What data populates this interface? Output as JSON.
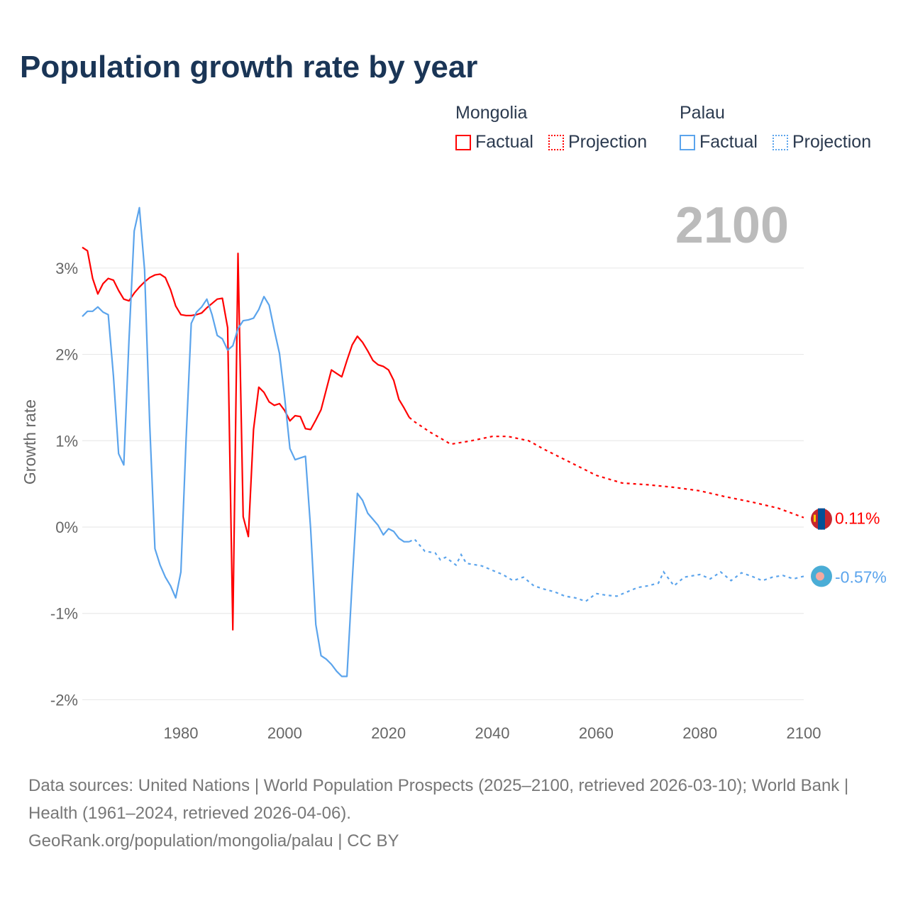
{
  "title": "Population growth rate by year",
  "legend": [
    {
      "name": "Mongolia",
      "color": "#ff0000",
      "factual": "Factual",
      "projection": "Projection"
    },
    {
      "name": "Palau",
      "color": "#5ba4ec",
      "factual": "Factual",
      "projection": "Projection"
    }
  ],
  "year_display": "2100",
  "footer": {
    "sources": "Data sources: United Nations | World Population Prospects (2025–2100, retrieved 2026-03-10); World Bank | Health (1961–2024, retrieved 2026-04-06).",
    "credit": "GeoRank.org/population/mongolia/palau | CC BY"
  },
  "chart_data": {
    "type": "line",
    "title": "Population growth rate by year",
    "xlabel": "",
    "ylabel": "Growth rate",
    "xlim": [
      1961,
      2100
    ],
    "ylim": [
      -2.2,
      3.8
    ],
    "xticks": [
      1980,
      2000,
      2020,
      2040,
      2060,
      2080,
      2100
    ],
    "yticks": [
      -2,
      -1,
      0,
      1,
      2,
      3
    ],
    "ytick_labels": [
      "-2%",
      "-1%",
      "0%",
      "1%",
      "2%",
      "3%"
    ],
    "grid": true,
    "legend_position": "top-right",
    "series": [
      {
        "name": "Mongolia",
        "color": "#ff0000",
        "end_label": "0.11%",
        "factual": {
          "x": [
            1961,
            1962,
            1963,
            1964,
            1965,
            1966,
            1967,
            1968,
            1969,
            1970,
            1971,
            1972,
            1973,
            1974,
            1975,
            1976,
            1977,
            1978,
            1979,
            1980,
            1981,
            1982,
            1983,
            1984,
            1985,
            1986,
            1987,
            1988,
            1989,
            1990,
            1991,
            1992,
            1993,
            1994,
            1995,
            1996,
            1997,
            1998,
            1999,
            2000,
            2001,
            2002,
            2003,
            2004,
            2005,
            2006,
            2007,
            2008,
            2009,
            2010,
            2011,
            2012,
            2013,
            2014,
            2015,
            2016,
            2017,
            2018,
            2019,
            2020,
            2021,
            2022,
            2023,
            2024
          ],
          "y": [
            3.24,
            3.2,
            2.88,
            2.7,
            2.82,
            2.88,
            2.86,
            2.74,
            2.64,
            2.62,
            2.71,
            2.78,
            2.84,
            2.89,
            2.92,
            2.93,
            2.89,
            2.75,
            2.56,
            2.46,
            2.45,
            2.45,
            2.46,
            2.48,
            2.54,
            2.59,
            2.64,
            2.65,
            2.31,
            -1.19,
            3.17,
            0.12,
            -0.11,
            1.13,
            1.62,
            1.56,
            1.45,
            1.41,
            1.43,
            1.35,
            1.23,
            1.29,
            1.28,
            1.14,
            1.13,
            1.24,
            1.36,
            1.59,
            1.82,
            1.78,
            1.74,
            1.93,
            2.11,
            2.21,
            2.14,
            2.04,
            1.93,
            1.88,
            1.86,
            1.82,
            1.7,
            1.48,
            1.38,
            1.27
          ]
        },
        "projection": {
          "x": [
            2024,
            2025,
            2028,
            2032,
            2036,
            2040,
            2043,
            2047,
            2050,
            2055,
            2060,
            2065,
            2070,
            2075,
            2080,
            2085,
            2090,
            2095,
            2100
          ],
          "y": [
            1.27,
            1.22,
            1.1,
            0.96,
            1.0,
            1.05,
            1.05,
            1.0,
            0.9,
            0.75,
            0.6,
            0.51,
            0.49,
            0.46,
            0.42,
            0.35,
            0.29,
            0.22,
            0.11
          ]
        }
      },
      {
        "name": "Palau",
        "color": "#5ba4ec",
        "end_label": "-0.57%",
        "factual": {
          "x": [
            1961,
            1962,
            1963,
            1964,
            1965,
            1966,
            1967,
            1968,
            1969,
            1970,
            1971,
            1972,
            1973,
            1974,
            1975,
            1976,
            1977,
            1978,
            1979,
            1980,
            1981,
            1982,
            1983,
            1984,
            1985,
            1986,
            1987,
            1988,
            1989,
            1990,
            1991,
            1992,
            1993,
            1994,
            1995,
            1996,
            1997,
            1998,
            1999,
            2000,
            2001,
            2002,
            2003,
            2004,
            2005,
            2006,
            2007,
            2008,
            2009,
            2010,
            2011,
            2012,
            2013,
            2014,
            2015,
            2016,
            2017,
            2018,
            2019,
            2020,
            2021,
            2022,
            2023,
            2024
          ],
          "y": [
            2.44,
            2.5,
            2.5,
            2.55,
            2.49,
            2.46,
            1.75,
            0.85,
            0.72,
            2.16,
            3.43,
            3.7,
            2.98,
            1.18,
            -0.25,
            -0.44,
            -0.58,
            -0.68,
            -0.82,
            -0.52,
            1.01,
            2.36,
            2.49,
            2.55,
            2.64,
            2.46,
            2.22,
            2.18,
            2.05,
            2.1,
            2.3,
            2.39,
            2.4,
            2.42,
            2.52,
            2.67,
            2.57,
            2.28,
            2.01,
            1.5,
            0.91,
            0.78,
            0.8,
            0.82,
            -0.02,
            -1.13,
            -1.49,
            -1.53,
            -1.59,
            -1.67,
            -1.73,
            -1.73,
            -0.63,
            0.39,
            0.31,
            0.16,
            0.09,
            0.02,
            -0.09,
            -0.02,
            -0.05,
            -0.13,
            -0.17,
            -0.17
          ]
        },
        "projection": {
          "x": [
            2024,
            2025,
            2027,
            2029,
            2030,
            2031,
            2033,
            2034,
            2035,
            2038,
            2040,
            2042,
            2044,
            2046,
            2048,
            2050,
            2052,
            2054,
            2056,
            2058,
            2060,
            2062,
            2064,
            2066,
            2068,
            2070,
            2072,
            2073,
            2075,
            2077,
            2080,
            2082,
            2084,
            2086,
            2088,
            2090,
            2092,
            2094,
            2096,
            2098,
            2100
          ],
          "y": [
            -0.17,
            -0.14,
            -0.28,
            -0.3,
            -0.38,
            -0.35,
            -0.44,
            -0.32,
            -0.42,
            -0.45,
            -0.5,
            -0.55,
            -0.62,
            -0.58,
            -0.68,
            -0.72,
            -0.75,
            -0.8,
            -0.82,
            -0.86,
            -0.77,
            -0.79,
            -0.8,
            -0.75,
            -0.7,
            -0.68,
            -0.65,
            -0.52,
            -0.68,
            -0.58,
            -0.55,
            -0.6,
            -0.52,
            -0.62,
            -0.53,
            -0.57,
            -0.62,
            -0.58,
            -0.56,
            -0.6,
            -0.57
          ]
        }
      }
    ]
  }
}
